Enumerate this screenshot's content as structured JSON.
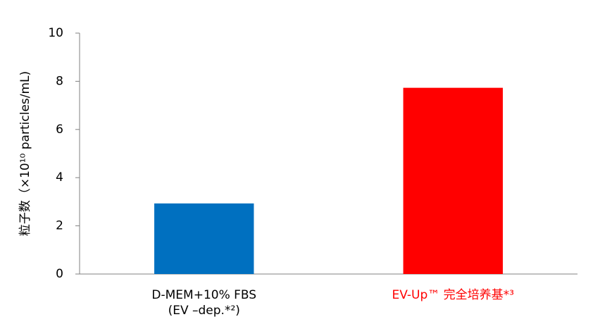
{
  "chart_data": {
    "type": "bar",
    "y_label": "粒子数（×10¹⁰ particles/mL)",
    "categories": [
      "D-MEM+10% FBS\n(EV –dep.*²)",
      "EV-Up™ 完全培养基*³"
    ],
    "category_label_colors": [
      "#000000",
      "#ff0000"
    ],
    "values": [
      2.93,
      7.73
    ],
    "colors": [
      "#0070c0",
      "#ff0000"
    ],
    "ylim": [
      0,
      10
    ],
    "yticks": [
      0,
      2,
      4,
      6,
      8,
      10
    ],
    "grid": false
  }
}
